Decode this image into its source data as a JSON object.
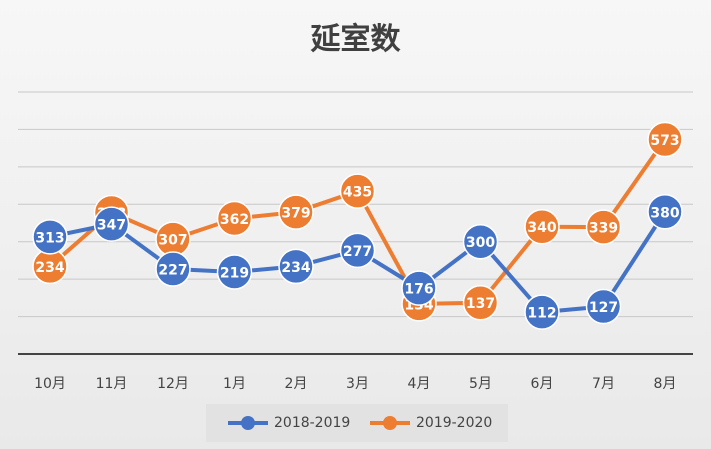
{
  "chart_data": {
    "type": "line",
    "title": "延室数",
    "categories": [
      "10月",
      "11月",
      "12月",
      "1月",
      "2月",
      "3月",
      "4月",
      "5月",
      "6月",
      "7月",
      "8月"
    ],
    "series": [
      {
        "name": "2018-2019",
        "color": "#4472c4",
        "values": [
          313,
          347,
          227,
          219,
          234,
          277,
          176,
          300,
          112,
          127,
          380
        ]
      },
      {
        "name": "2019-2020",
        "color": "#ed7d31",
        "values": [
          234,
          378,
          307,
          362,
          379,
          435,
          134,
          137,
          340,
          339,
          573
        ]
      }
    ],
    "ylim": [
      0,
      700
    ],
    "grid": true,
    "data_labels": true,
    "legend": "bottom"
  }
}
